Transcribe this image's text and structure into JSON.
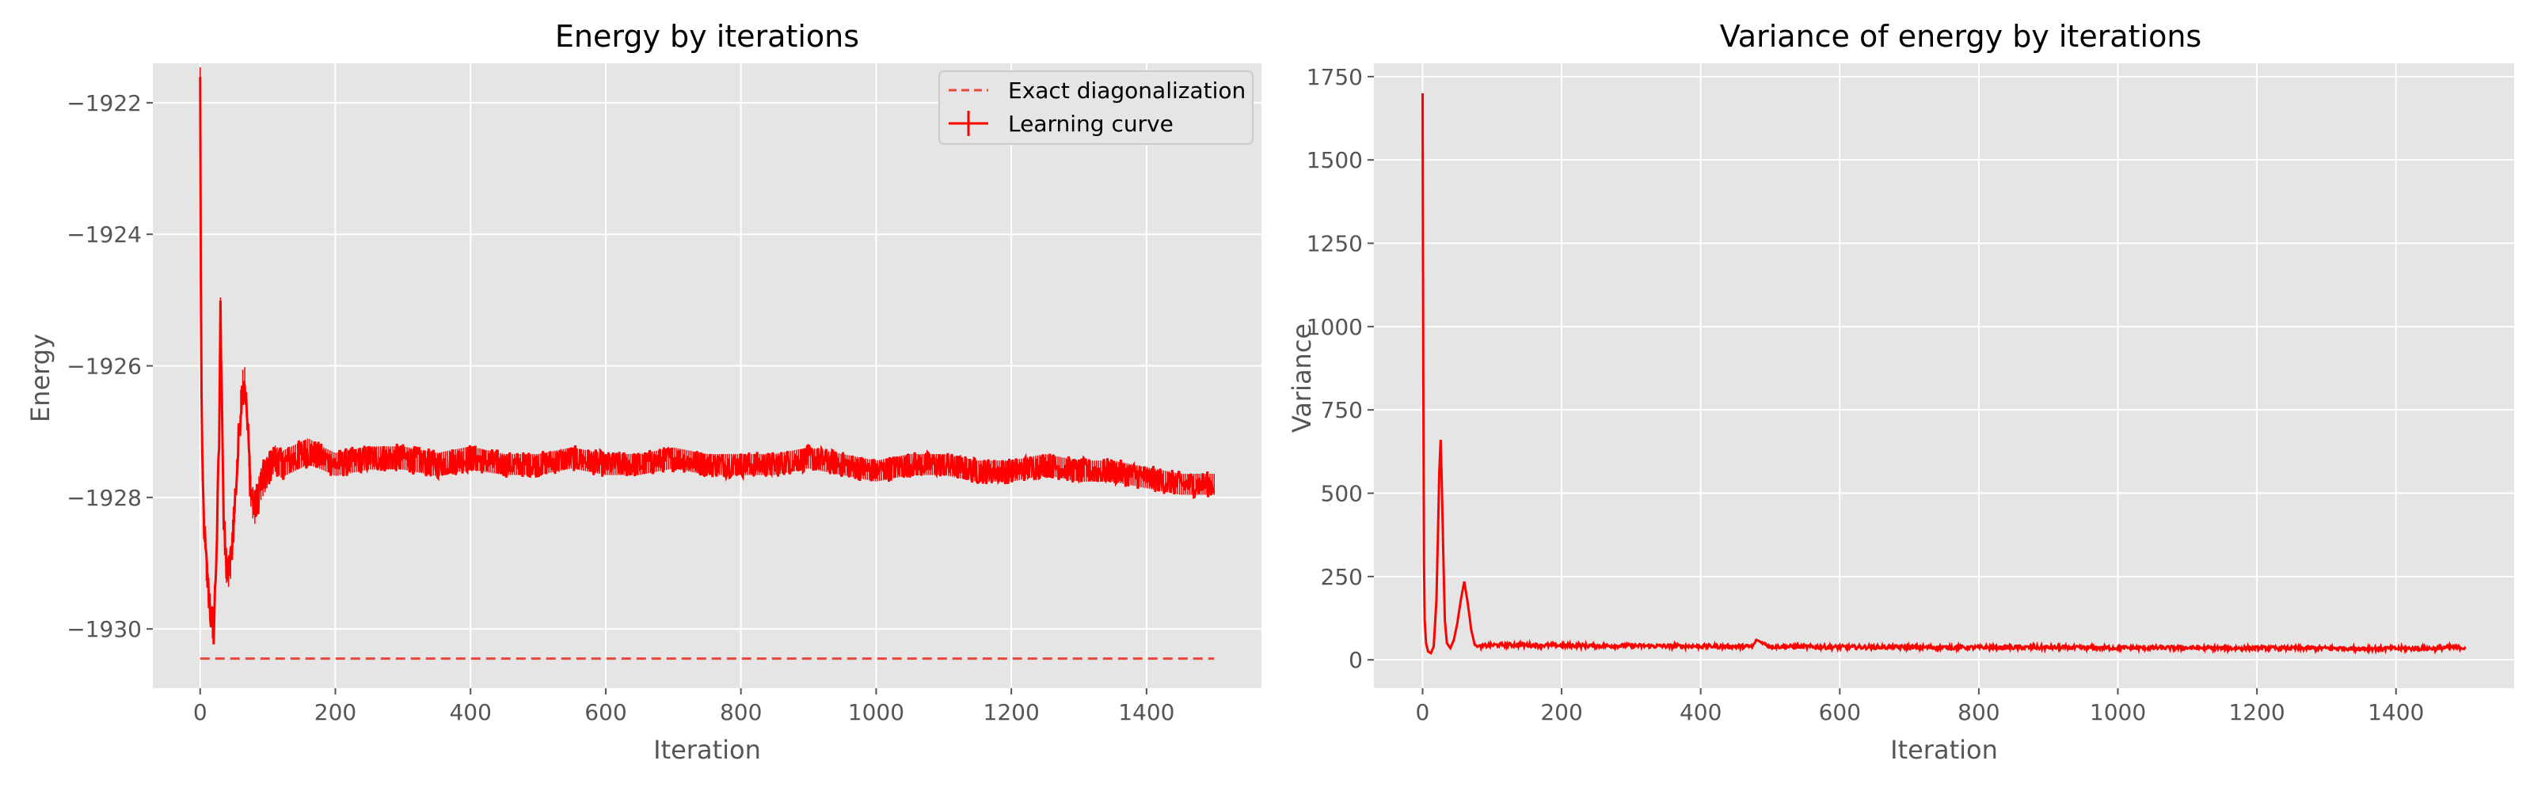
{
  "chart_data": [
    {
      "type": "line",
      "title": "Energy by iterations",
      "xlabel": "Iteration",
      "ylabel": "Energy",
      "xlim": [
        -70,
        1570
      ],
      "ylim": [
        -1930.9,
        -1921.4
      ],
      "xticks": [
        0,
        200,
        400,
        600,
        800,
        1000,
        1200,
        1400
      ],
      "yticks": [
        -1930,
        -1928,
        -1926,
        -1924,
        -1922
      ],
      "xtick_labels": [
        "0",
        "200",
        "400",
        "600",
        "800",
        "1000",
        "1200",
        "1400"
      ],
      "ytick_labels": [
        "−1930",
        "−1928",
        "−1926",
        "−1924",
        "−1922"
      ],
      "grid": true,
      "legend_position": "top-right",
      "colors": {
        "series": "#ff0000",
        "reference": "#e8473a",
        "background": "#e5e5e5",
        "grid": "#ffffff"
      },
      "series": [
        {
          "name": "Exact diagonalization",
          "style": "dashed",
          "x": [
            0,
            1500
          ],
          "y": [
            -1930.45,
            -1930.45
          ]
        },
        {
          "name": "Learning curve",
          "style": "solid-errorbar",
          "x": [
            0,
            1,
            2,
            3,
            5,
            8,
            12,
            16,
            20,
            22,
            25,
            28,
            30,
            32,
            35,
            40,
            45,
            50,
            55,
            60,
            65,
            70,
            75,
            80,
            90,
            100,
            110,
            120,
            140,
            160,
            180,
            200,
            250,
            300,
            350,
            400,
            450,
            500,
            550,
            600,
            650,
            700,
            750,
            800,
            850,
            900,
            950,
            1000,
            1050,
            1100,
            1150,
            1200,
            1250,
            1300,
            1350,
            1400,
            1450,
            1500
          ],
          "y": [
            -1921.7,
            -1924.5,
            -1926.5,
            -1927.5,
            -1928.2,
            -1928.9,
            -1929.4,
            -1929.8,
            -1930.0,
            -1929.5,
            -1928.5,
            -1927.2,
            -1925.2,
            -1926.2,
            -1928.5,
            -1929.2,
            -1929.0,
            -1928.3,
            -1927.5,
            -1926.6,
            -1926.1,
            -1926.9,
            -1927.9,
            -1928.2,
            -1927.8,
            -1927.6,
            -1927.4,
            -1927.5,
            -1927.4,
            -1927.3,
            -1927.4,
            -1927.5,
            -1927.4,
            -1927.4,
            -1927.5,
            -1927.4,
            -1927.5,
            -1927.5,
            -1927.4,
            -1927.5,
            -1927.5,
            -1927.4,
            -1927.5,
            -1927.5,
            -1927.5,
            -1927.4,
            -1927.5,
            -1927.6,
            -1927.5,
            -1927.5,
            -1927.6,
            -1927.6,
            -1927.5,
            -1927.6,
            -1927.6,
            -1927.7,
            -1927.8,
            -1927.8
          ],
          "noise": [
            0.3,
            0.3,
            0.3,
            0.3,
            0.3,
            0.3,
            0.3,
            0.3,
            0.3,
            0.3,
            0.3,
            0.3,
            0.3,
            0.3,
            0.3,
            0.3,
            0.3,
            0.3,
            0.3,
            0.3,
            0.3,
            0.3,
            0.3,
            0.3,
            0.3,
            0.3,
            0.25,
            0.25,
            0.25,
            0.25,
            0.22,
            0.22,
            0.22,
            0.22,
            0.22,
            0.22,
            0.2,
            0.2,
            0.2,
            0.2,
            0.2,
            0.2,
            0.2,
            0.2,
            0.2,
            0.2,
            0.2,
            0.2,
            0.2,
            0.2,
            0.2,
            0.2,
            0.2,
            0.2,
            0.2,
            0.2,
            0.2,
            0.2
          ]
        }
      ]
    },
    {
      "type": "line",
      "title": "Variance of energy by iterations",
      "xlabel": "Iteration",
      "ylabel": "Variance",
      "xlim": [
        -70,
        1570
      ],
      "ylim": [
        -85,
        1790
      ],
      "xticks": [
        0,
        200,
        400,
        600,
        800,
        1000,
        1200,
        1400
      ],
      "yticks": [
        0,
        250,
        500,
        750,
        1000,
        1250,
        1500,
        1750
      ],
      "xtick_labels": [
        "0",
        "200",
        "400",
        "600",
        "800",
        "1000",
        "1200",
        "1400"
      ],
      "ytick_labels": [
        "0",
        "250",
        "500",
        "750",
        "1000",
        "1250",
        "1500",
        "1750"
      ],
      "grid": true,
      "colors": {
        "series": "#ff0000",
        "background": "#e5e5e5",
        "grid": "#ffffff"
      },
      "series": [
        {
          "x": [
            0,
            1,
            2,
            3,
            5,
            8,
            12,
            16,
            20,
            24,
            26,
            28,
            30,
            32,
            35,
            40,
            45,
            50,
            55,
            60,
            65,
            70,
            75,
            80,
            90,
            100,
            120,
            150,
            200,
            250,
            300,
            350,
            400,
            450,
            475,
            480,
            500,
            550,
            600,
            650,
            700,
            750,
            800,
            850,
            900,
            950,
            1000,
            1050,
            1100,
            1150,
            1200,
            1250,
            1300,
            1350,
            1400,
            1450,
            1480,
            1500
          ],
          "y": [
            1700,
            900,
            300,
            120,
            50,
            25,
            20,
            40,
            180,
            560,
            660,
            500,
            300,
            120,
            50,
            35,
            60,
            110,
            180,
            235,
            170,
            90,
            45,
            40,
            42,
            44,
            45,
            44,
            43,
            42,
            42,
            41,
            41,
            40,
            40,
            60,
            40,
            39,
            38,
            38,
            38,
            37,
            37,
            37,
            37,
            36,
            36,
            36,
            36,
            35,
            35,
            35,
            35,
            34,
            34,
            34,
            38,
            36
          ],
          "noise": [
            0,
            0,
            0,
            0,
            0,
            0,
            0,
            0,
            0,
            0,
            0,
            0,
            0,
            0,
            0,
            0,
            0,
            0,
            0,
            0,
            0,
            0,
            0,
            4,
            6,
            6,
            6,
            6,
            6,
            6,
            6,
            6,
            6,
            6,
            6,
            0,
            6,
            6,
            6,
            6,
            6,
            6,
            6,
            6,
            6,
            6,
            6,
            6,
            6,
            6,
            6,
            6,
            6,
            6,
            6,
            6,
            6,
            6
          ]
        }
      ]
    }
  ]
}
